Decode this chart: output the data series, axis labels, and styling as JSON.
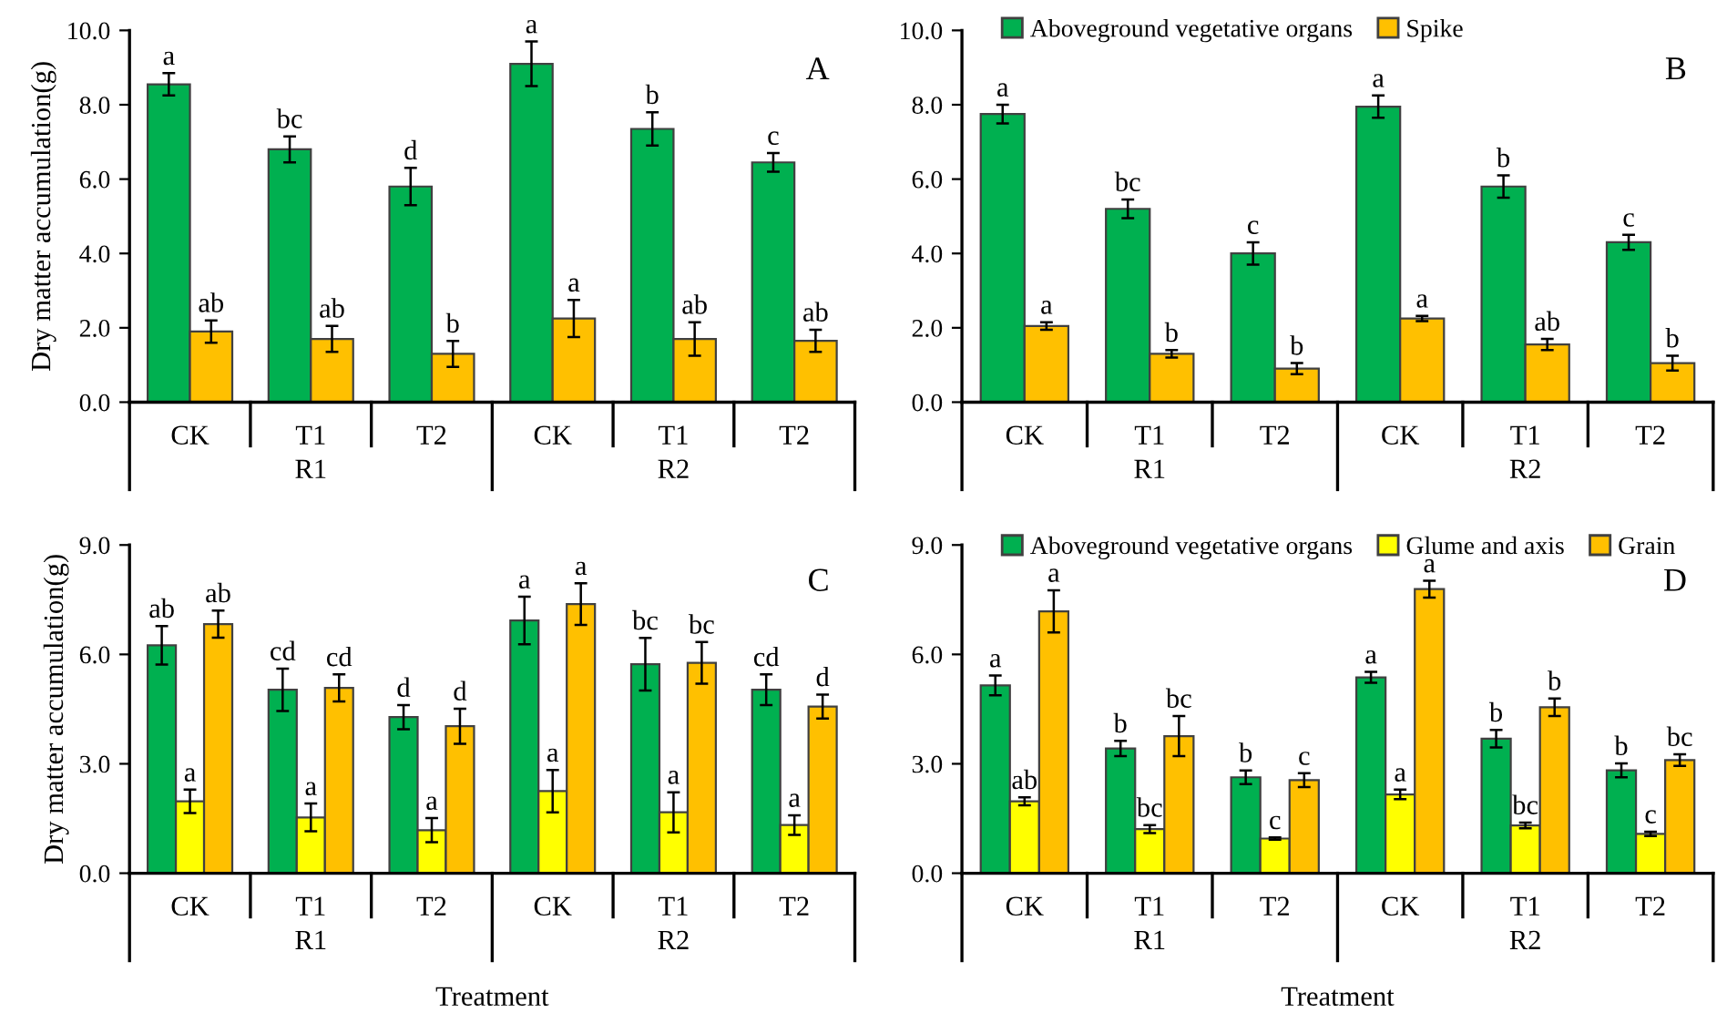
{
  "chart_data": [
    {
      "type": "bar",
      "title": "A",
      "ylabel": "Dry matter accumulation(g)",
      "categories": [
        "CK",
        "T1",
        "T2",
        "CK",
        "T1",
        "T2"
      ],
      "annotations": [
        "R1",
        "R2"
      ],
      "ylim": [
        0,
        10
      ],
      "yticks": [
        {
          "value": 0,
          "label": "0.0"
        },
        {
          "value": 2,
          "label": "2.0"
        },
        {
          "value": 4,
          "label": "4.0"
        },
        {
          "value": 6,
          "label": "6.0"
        },
        {
          "value": 8,
          "label": "8.0"
        },
        {
          "value": 10,
          "label": "10.0"
        }
      ],
      "grid": false,
      "legend": false,
      "series": [
        {
          "color": "#00b050",
          "values": [
            8.55,
            6.8,
            5.8,
            9.1,
            7.35,
            6.45
          ],
          "errors": [
            0.3,
            0.35,
            0.5,
            0.6,
            0.45,
            0.25
          ],
          "value_labels": [
            "a",
            "bc",
            "d",
            "a",
            "b",
            "c"
          ]
        },
        {
          "color": "#ffc000",
          "values": [
            1.9,
            1.7,
            1.3,
            2.25,
            1.7,
            1.65
          ],
          "errors": [
            0.3,
            0.35,
            0.35,
            0.5,
            0.45,
            0.3
          ],
          "value_labels": [
            "ab",
            "ab",
            "b",
            "a",
            "ab",
            "ab"
          ]
        }
      ]
    },
    {
      "type": "bar",
      "title": "B",
      "categories": [
        "CK",
        "T1",
        "T2",
        "CK",
        "T1",
        "T2"
      ],
      "annotations": [
        "R1",
        "R2"
      ],
      "ylim": [
        0,
        10
      ],
      "yticks": [
        {
          "value": 0,
          "label": "0.0"
        },
        {
          "value": 2,
          "label": "2.0"
        },
        {
          "value": 4,
          "label": "4.0"
        },
        {
          "value": 6,
          "label": "6.0"
        },
        {
          "value": 8,
          "label": "8.0"
        },
        {
          "value": 10,
          "label": "10.0"
        }
      ],
      "grid": false,
      "legend": "top",
      "series": [
        {
          "name": "Aboveground vegetative organs",
          "color": "#00b050",
          "values": [
            7.75,
            5.2,
            4.0,
            7.95,
            5.8,
            4.3
          ],
          "errors": [
            0.25,
            0.25,
            0.3,
            0.3,
            0.3,
            0.2
          ],
          "value_labels": [
            "a",
            "bc",
            "c",
            "a",
            "b",
            "c"
          ]
        },
        {
          "name": "Spike",
          "color": "#ffc000",
          "values": [
            2.05,
            1.3,
            0.9,
            2.25,
            1.55,
            1.05
          ],
          "errors": [
            0.1,
            0.1,
            0.15,
            0.07,
            0.15,
            0.2
          ],
          "value_labels": [
            "a",
            "b",
            "b",
            "a",
            "ab",
            "b"
          ]
        }
      ]
    },
    {
      "type": "bar",
      "title": "C",
      "xlabel": "Treatment",
      "ylabel": "Dry matter accumulation(g)",
      "categories": [
        "CK",
        "T1",
        "T2",
        "CK",
        "T1",
        "T2"
      ],
      "annotations": [
        "R1",
        "R2"
      ],
      "ylim": [
        0,
        9
      ],
      "yticks": [
        {
          "value": 0,
          "label": "0.0"
        },
        {
          "value": 3,
          "label": "3.0"
        },
        {
          "value": 6,
          "label": "6.0"
        },
        {
          "value": 9,
          "label": "9.0"
        }
      ],
      "grid": false,
      "legend": false,
      "series": [
        {
          "color": "#00b050",
          "values": [
            6.25,
            5.03,
            4.28,
            6.93,
            5.73,
            5.03
          ],
          "errors": [
            0.53,
            0.58,
            0.33,
            0.65,
            0.72,
            0.42
          ],
          "value_labels": [
            "ab",
            "cd",
            "d",
            "a",
            "bc",
            "cd"
          ]
        },
        {
          "color": "#ffff00",
          "values": [
            1.97,
            1.53,
            1.18,
            2.25,
            1.67,
            1.32
          ],
          "errors": [
            0.32,
            0.38,
            0.33,
            0.58,
            0.55,
            0.27
          ],
          "value_labels": [
            "a",
            "a",
            "a",
            "a",
            "a",
            "a"
          ]
        },
        {
          "color": "#ffc000",
          "values": [
            6.83,
            5.08,
            4.03,
            7.38,
            5.77,
            4.57
          ],
          "errors": [
            0.37,
            0.37,
            0.48,
            0.57,
            0.57,
            0.33
          ],
          "value_labels": [
            "ab",
            "cd",
            "d",
            "a",
            "bc",
            "d"
          ]
        }
      ]
    },
    {
      "type": "bar",
      "title": "D",
      "xlabel": "Treatment",
      "categories": [
        "CK",
        "T1",
        "T2",
        "CK",
        "T1",
        "T2"
      ],
      "annotations": [
        "R1",
        "R2"
      ],
      "ylim": [
        0,
        9
      ],
      "yticks": [
        {
          "value": 0,
          "label": "0.0"
        },
        {
          "value": 3,
          "label": "3.0"
        },
        {
          "value": 6,
          "label": "6.0"
        },
        {
          "value": 9,
          "label": "9.0"
        }
      ],
      "grid": false,
      "legend": "top",
      "series": [
        {
          "name": "Aboveground vegetative organs",
          "color": "#00b050",
          "values": [
            5.15,
            3.42,
            2.63,
            5.37,
            3.69,
            2.82
          ],
          "errors": [
            0.27,
            0.21,
            0.19,
            0.15,
            0.24,
            0.19
          ],
          "value_labels": [
            "a",
            "b",
            "b",
            "a",
            "b",
            "b"
          ]
        },
        {
          "name": "Glume and axis",
          "color": "#ffff00",
          "values": [
            1.97,
            1.21,
            0.95,
            2.16,
            1.31,
            1.08
          ],
          "errors": [
            0.11,
            0.11,
            0.03,
            0.13,
            0.08,
            0.06
          ],
          "value_labels": [
            "ab",
            "bc",
            "c",
            "a",
            "bc",
            "c"
          ]
        },
        {
          "name": "Grain",
          "color": "#ffc000",
          "values": [
            7.18,
            3.76,
            2.55,
            7.79,
            4.55,
            3.1
          ],
          "errors": [
            0.58,
            0.55,
            0.19,
            0.23,
            0.24,
            0.16
          ],
          "value_labels": [
            "a",
            "bc",
            "c",
            "a",
            "b",
            "bc"
          ]
        }
      ]
    }
  ]
}
